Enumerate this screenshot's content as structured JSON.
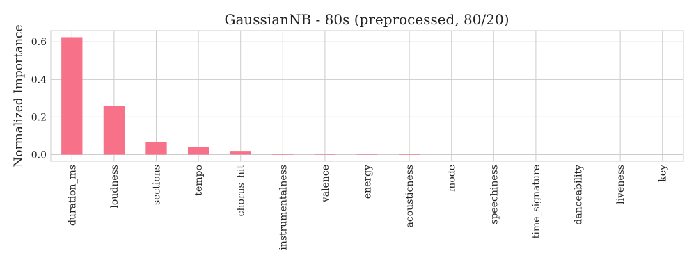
{
  "chart_data": {
    "type": "bar",
    "title": "GaussianNB - 80s (preprocessed, 80/20)",
    "xlabel": "",
    "ylabel": "Normalized Importance",
    "categories": [
      "duration_ms",
      "loudness",
      "sections",
      "tempo",
      "chorus_hit",
      "instrumentalness",
      "valence",
      "energy",
      "acousticness",
      "mode",
      "speechiness",
      "time_signature",
      "danceability",
      "liveness",
      "key"
    ],
    "values": [
      0.625,
      0.26,
      0.065,
      0.04,
      0.02,
      0.004,
      0.004,
      0.004,
      0.003,
      0.0,
      0.0,
      0.0,
      0.0,
      0.0,
      0.0
    ],
    "yticks": [
      "0.0",
      "0.2",
      "0.4",
      "0.6"
    ],
    "ylim": [
      -0.035,
      0.66
    ],
    "grid": true,
    "bar_color": "#f77189"
  }
}
